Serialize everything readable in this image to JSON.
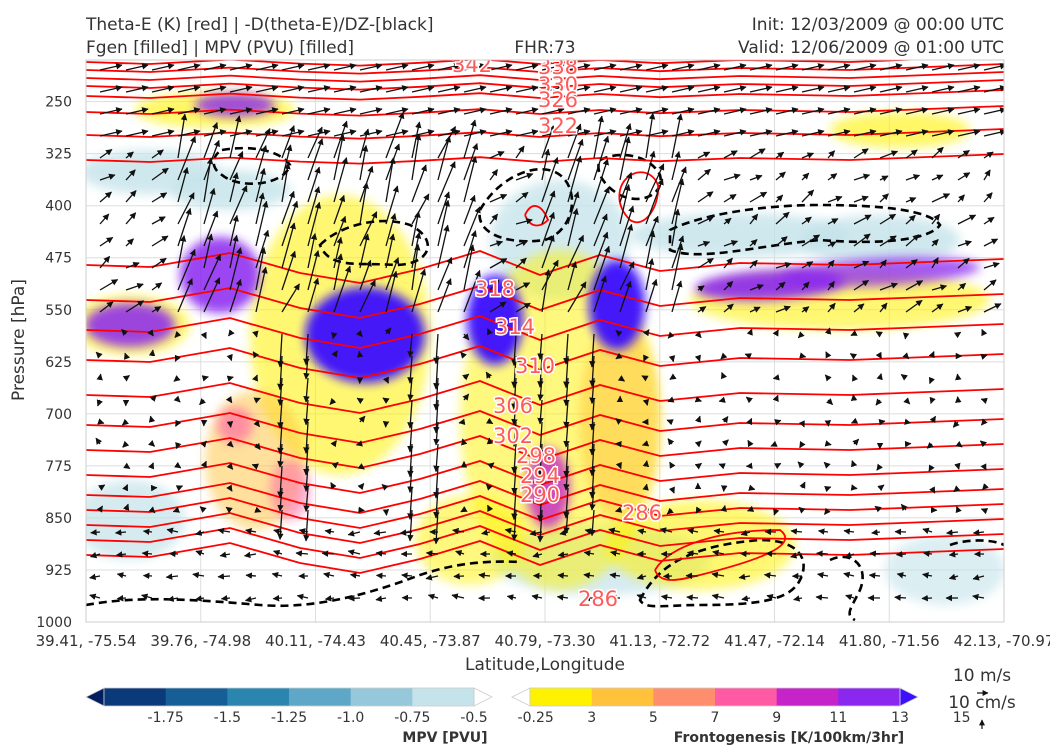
{
  "header": {
    "left_line1": "Theta-E (K) [red] | -D(theta-E)/DZ-[black]",
    "left_line2": "Fgen [filled] | MPV (PVU) [filled]",
    "center": "FHR:73",
    "right_line1": "Init: 12/03/2009 @ 00:00 UTC",
    "right_line2": "Valid: 12/06/2009 @ 01:00 UTC"
  },
  "chart_data": {
    "type": "cross-section",
    "xlabel": "Latitude,Longitude",
    "ylabel": "Pressure [hPa]",
    "ylim": [
      1000,
      190
    ],
    "y_ticks": [
      250,
      325,
      400,
      475,
      550,
      625,
      700,
      775,
      850,
      925,
      1000
    ],
    "x_ticks": [
      "39.41, -75.54",
      "39.76, -74.98",
      "40.11, -74.43",
      "40.45, -73.87",
      "40.79, -73.30",
      "41.13, -72.72",
      "41.47, -72.14",
      "41.80, -71.56",
      "42.13, -70.97"
    ],
    "grid": true,
    "theta_e_contour_labels": [
      "342",
      "338",
      "330",
      "326",
      "322",
      "318",
      "314",
      "310",
      "306",
      "302",
      "298",
      "294",
      "290",
      "286",
      "286"
    ],
    "theta_e_label_color": "#ff5a5a",
    "mpv_colorbar": {
      "label": "MPV [PVU]",
      "ticks": [
        "-1.75",
        "-1.5",
        "-1.25",
        "-1.0",
        "-0.75",
        "-0.5",
        "-0.25"
      ],
      "colors": [
        "#041d5e",
        "#0b3a7a",
        "#155f96",
        "#2a86ae",
        "#5ea7c7",
        "#95c8da",
        "#c4e3ea",
        "#ffffff"
      ]
    },
    "fgen_colorbar": {
      "label": "Frontogenesis [K/100km/3hr]",
      "ticks": [
        "3",
        "5",
        "7",
        "9",
        "11",
        "13",
        "15"
      ],
      "colors": [
        "#ffffff",
        "#fff200",
        "#ffc23a",
        "#ff8f6c",
        "#ff5aa3",
        "#c524c8",
        "#8a28f0",
        "#3a10ff"
      ]
    },
    "wind_reference": {
      "label_horizontal": "10 m/s",
      "label_vertical": "10 cm/s"
    }
  }
}
